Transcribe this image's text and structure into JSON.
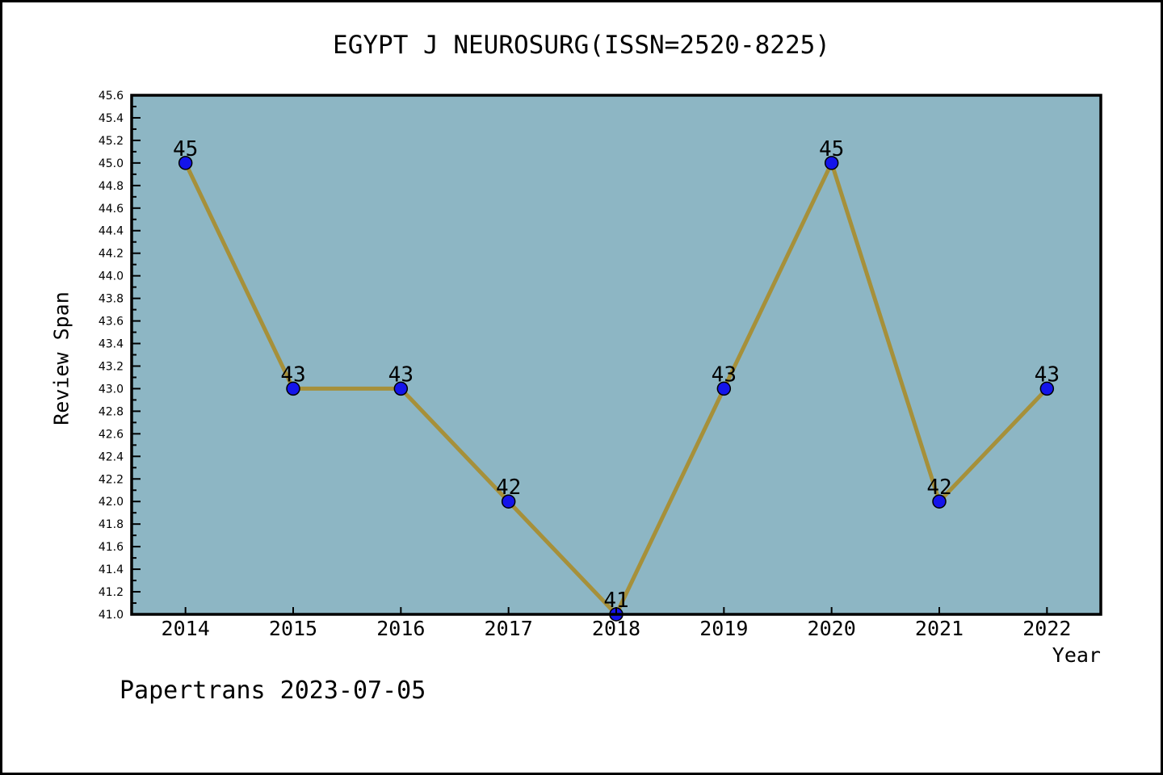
{
  "page": {
    "footer": "Papertrans 2023-07-05"
  },
  "chart_data": {
    "type": "line",
    "title": "EGYPT J NEUROSURG(ISSN=2520-8225)",
    "xlabel": "Year",
    "ylabel": "Review Span",
    "x": [
      2014,
      2015,
      2016,
      2017,
      2018,
      2019,
      2020,
      2021,
      2022
    ],
    "values": [
      45,
      43,
      43,
      42,
      41,
      43,
      45,
      42,
      43
    ],
    "point_labels": [
      "45",
      "43",
      "43",
      "42",
      "41",
      "43",
      "45",
      "42",
      "43"
    ],
    "xlim": [
      2013.5,
      2022.5
    ],
    "ylim": [
      41.0,
      45.6
    ],
    "ytick_step": 0.2,
    "yminor_step": 0.1,
    "grid": false,
    "legend": "none",
    "colors": {
      "line": "#a6903a",
      "marker": "#1414eb",
      "marker_edge": "#000000",
      "plot_bg": "#8db6c4",
      "axis": "#000000",
      "text": "#000000"
    }
  }
}
